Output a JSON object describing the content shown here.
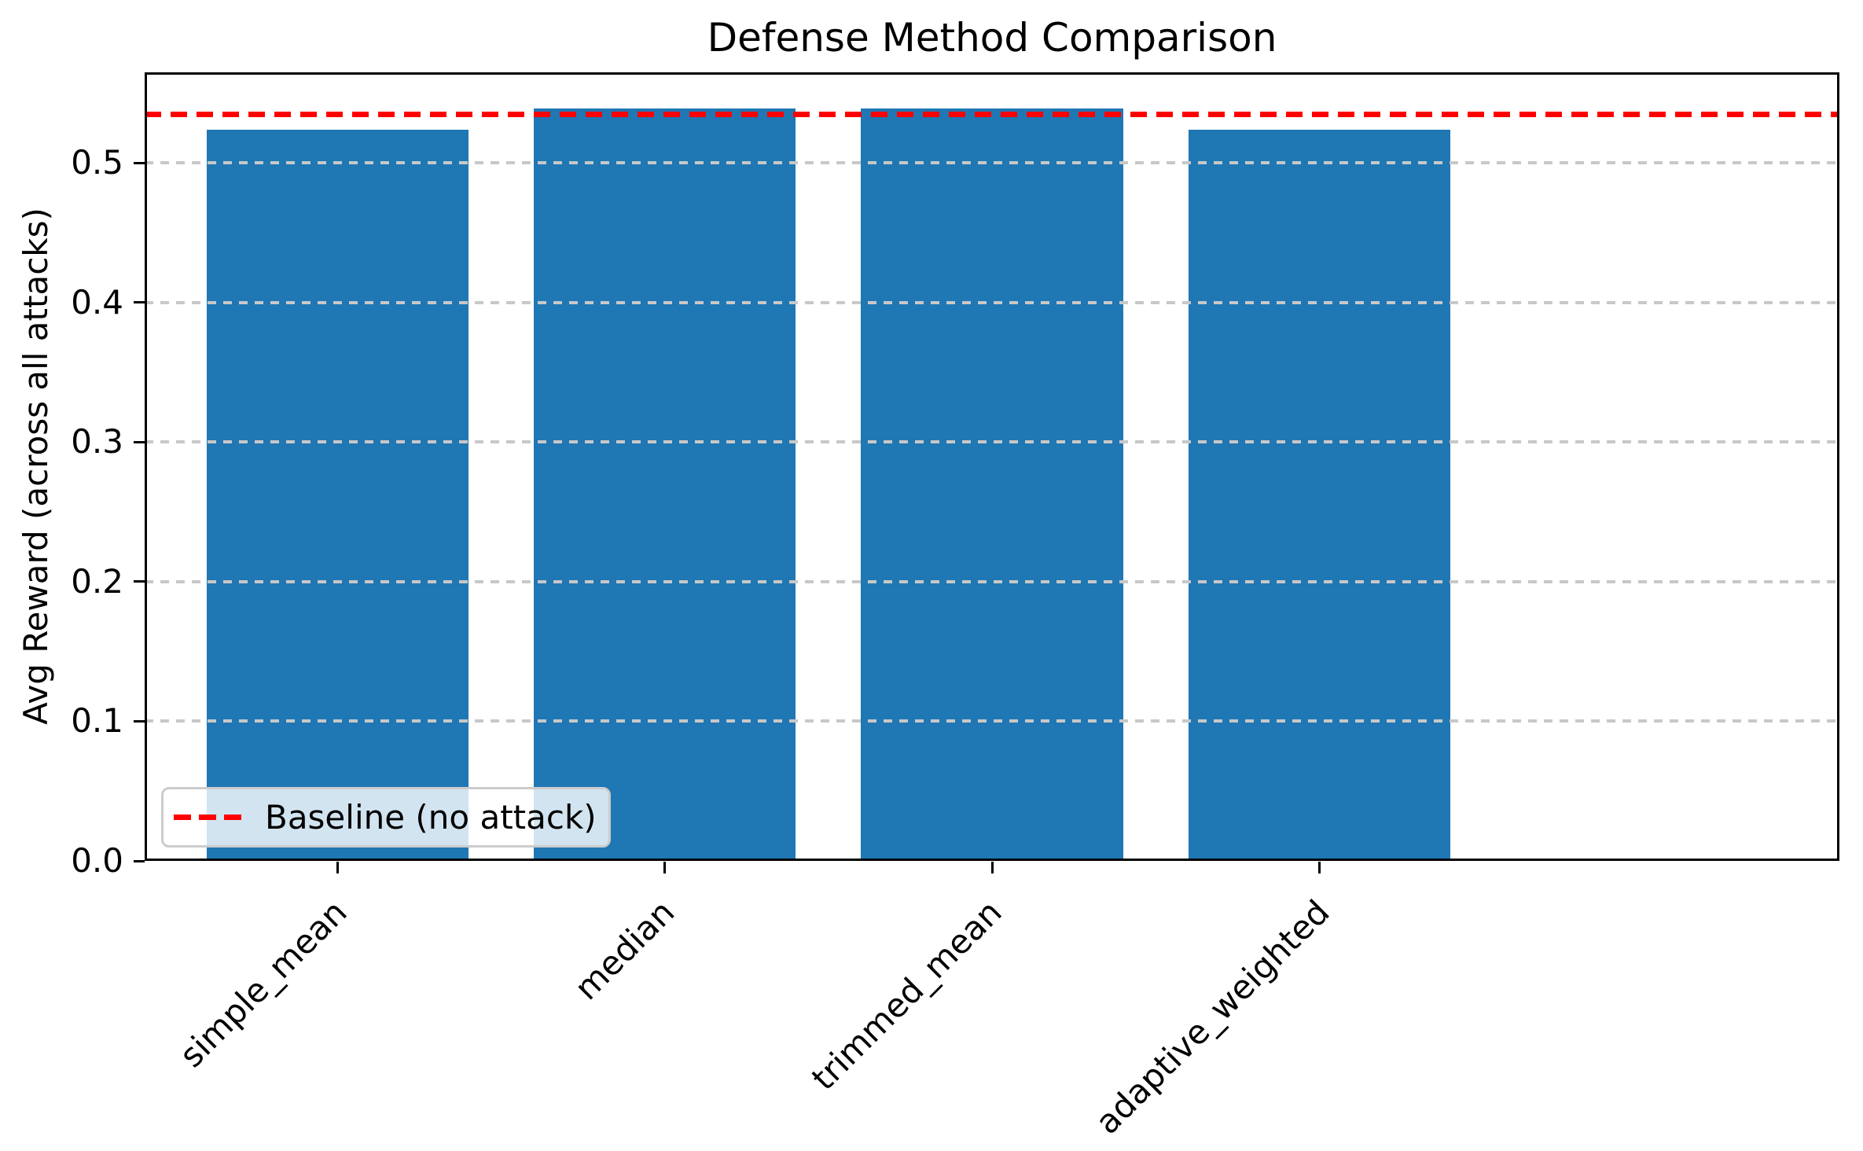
{
  "chart_data": {
    "type": "bar",
    "title": "Defense Method Comparison",
    "xlabel": "",
    "ylabel": "Avg Reward (across all attacks)",
    "categories": [
      "simple_mean",
      "median",
      "trimmed_mean",
      "adaptive_weighted"
    ],
    "values": [
      0.524,
      0.539,
      0.539,
      0.524
    ],
    "baseline": {
      "label": "Baseline (no attack)",
      "value": 0.535,
      "style": "dashed"
    },
    "legend": {
      "label": "Baseline (no attack)",
      "position": "lower left"
    },
    "ytick_values": [
      0.0,
      0.1,
      0.2,
      0.3,
      0.4,
      0.5
    ],
    "ytick_labels": [
      "0.0",
      "0.1",
      "0.2",
      "0.3",
      "0.4",
      "0.5"
    ],
    "ylim": [
      0,
      0.565
    ],
    "grid": true,
    "grid_style": "dashed",
    "bar_width_fraction": 0.8,
    "colors": {
      "bar": "#1f77b4",
      "baseline_line": "#ff0000",
      "grid": "#c8c8c8",
      "spine": "#000000",
      "text": "#000000",
      "legend_border": "#cccccc"
    }
  }
}
